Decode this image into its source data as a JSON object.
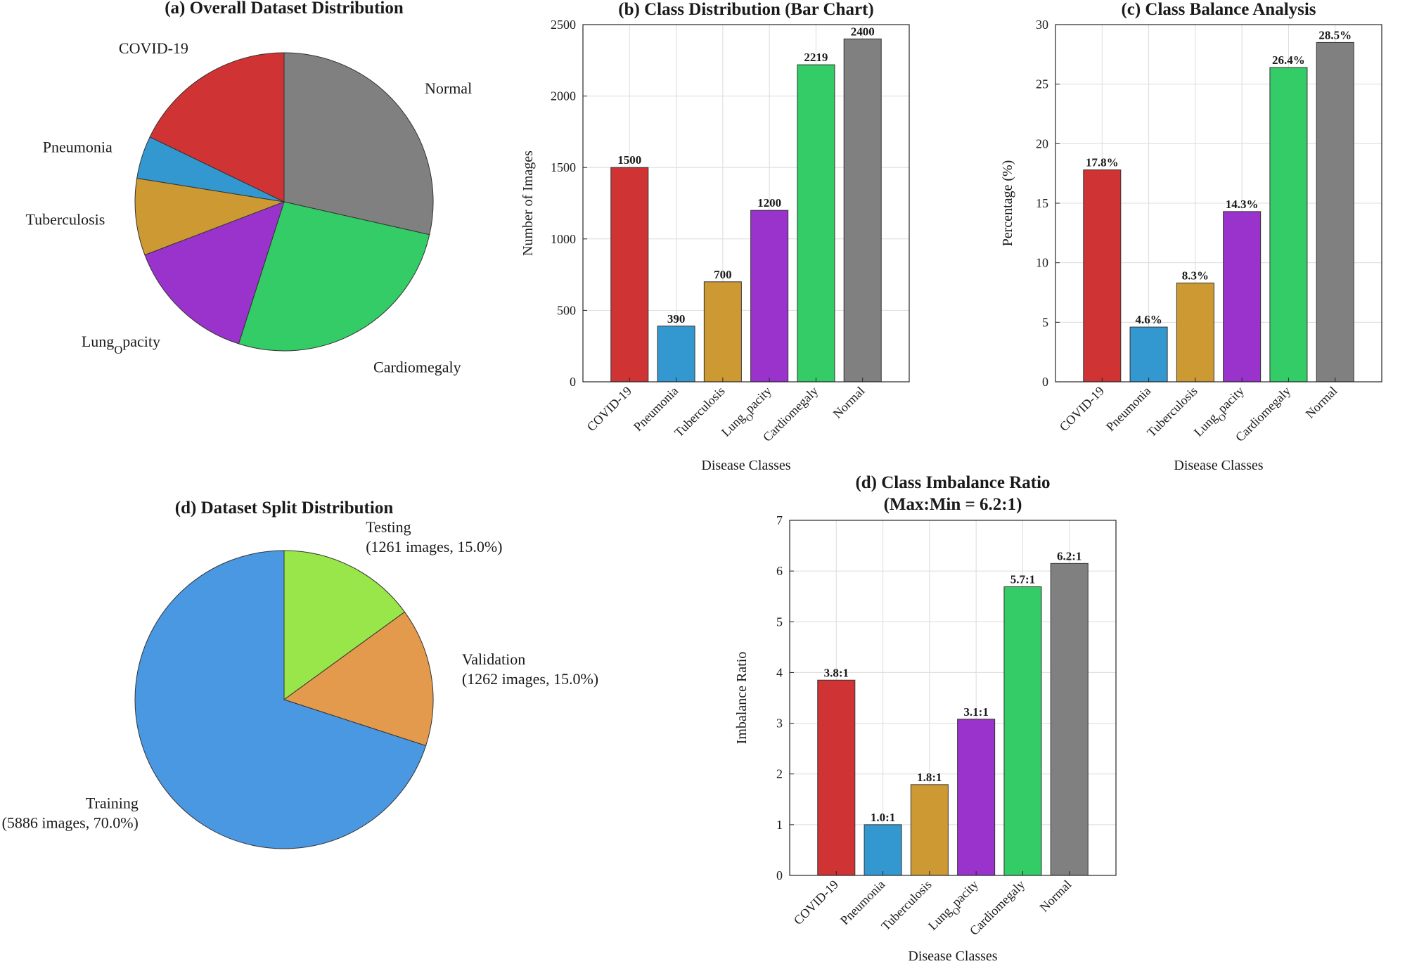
{
  "colors": {
    "COVID-19": "#d03333",
    "Pneumonia": "#3498d0",
    "Tuberculosis": "#cc9933",
    "Lung_Opacity": "#9933cc",
    "Cardiomegaly": "#33cc66",
    "Normal": "#808080",
    "Training": "#4a98e2",
    "Validation": "#e49a4c",
    "Testing": "#98e64a"
  },
  "chart_data": [
    {
      "id": "a",
      "type": "pie",
      "title": "(a) Overall Dataset Distribution",
      "slices": [
        {
          "label": "Normal",
          "value": 2400
        },
        {
          "label": "Cardiomegaly",
          "value": 2219
        },
        {
          "label": "Lung_Opacity",
          "value": 1200
        },
        {
          "label": "Tuberculosis",
          "value": 700
        },
        {
          "label": "Pneumonia",
          "value": 390
        },
        {
          "label": "COVID-19",
          "value": 1500
        }
      ]
    },
    {
      "id": "b",
      "type": "bar",
      "title": "(b) Class Distribution (Bar Chart)",
      "xlabel": "Disease Classes",
      "ylabel": "Number of Images",
      "categories": [
        "COVID-19",
        "Pneumonia",
        "Tuberculosis",
        "Lung_Opacity",
        "Cardiomegaly",
        "Normal"
      ],
      "values": [
        1500,
        390,
        700,
        1200,
        2219,
        2400
      ],
      "value_labels": [
        "1500",
        "390",
        "700",
        "1200",
        "2219",
        "2400"
      ],
      "ylim": [
        0,
        2500
      ],
      "yticks": [
        0,
        500,
        1000,
        1500,
        2000,
        2500
      ]
    },
    {
      "id": "c",
      "type": "bar",
      "title": "(c) Class Balance Analysis",
      "xlabel": "Disease Classes",
      "ylabel": "Percentage (%)",
      "categories": [
        "COVID-19",
        "Pneumonia",
        "Tuberculosis",
        "Lung_Opacity",
        "Cardiomegaly",
        "Normal"
      ],
      "values": [
        17.8,
        4.6,
        8.3,
        14.3,
        26.4,
        28.5
      ],
      "value_labels": [
        "17.8%",
        "4.6%",
        "8.3%",
        "14.3%",
        "26.4%",
        "28.5%"
      ],
      "ylim": [
        0,
        30
      ],
      "yticks": [
        0,
        5,
        10,
        15,
        20,
        25,
        30
      ]
    },
    {
      "id": "d_split",
      "type": "pie",
      "title": "(d) Dataset Split Distribution",
      "slices": [
        {
          "label": "Testing",
          "value": 1261,
          "detail": "(1261 images, 15.0%)"
        },
        {
          "label": "Validation",
          "value": 1262,
          "detail": "(1262 images, 15.0%)"
        },
        {
          "label": "Training",
          "value": 5886,
          "detail": "(5886 images, 70.0%)"
        }
      ]
    },
    {
      "id": "d_ratio",
      "type": "bar",
      "title": "(d) Class Imbalance Ratio",
      "subtitle": "(Max:Min = 6.2:1)",
      "xlabel": "Disease Classes",
      "ylabel": "Imbalance Ratio",
      "categories": [
        "COVID-19",
        "Pneumonia",
        "Tuberculosis",
        "Lung_Opacity",
        "Cardiomegaly",
        "Normal"
      ],
      "values": [
        3.85,
        1.0,
        1.79,
        3.08,
        5.69,
        6.15
      ],
      "value_labels": [
        "3.8:1",
        "1.0:1",
        "1.8:1",
        "3.1:1",
        "5.7:1",
        "6.2:1"
      ],
      "ylim": [
        0,
        7
      ],
      "yticks": [
        0,
        1,
        2,
        3,
        4,
        5,
        6,
        7
      ]
    }
  ]
}
